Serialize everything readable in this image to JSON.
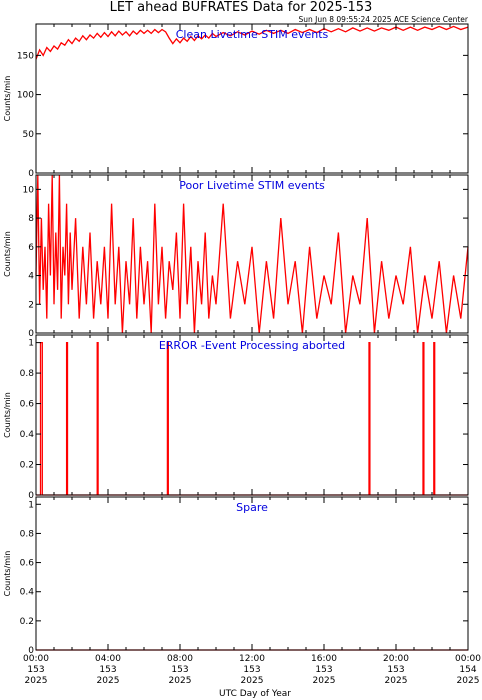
{
  "header": {
    "title": "LET ahead BUFRATES Data for 2025-153",
    "stamp": "Sun Jun  8 09:55:24 2025 ACE Science Center"
  },
  "xaxis": {
    "label": "UTC Day of Year",
    "range_hours": [
      0,
      24
    ],
    "ticks": [
      {
        "hour": 0,
        "time": "00:00",
        "doy": "153",
        "year": "2025"
      },
      {
        "hour": 4,
        "time": "04:00",
        "doy": "153",
        "year": "2025"
      },
      {
        "hour": 8,
        "time": "08:00",
        "doy": "153",
        "year": "2025"
      },
      {
        "hour": 12,
        "time": "12:00",
        "doy": "153",
        "year": "2025"
      },
      {
        "hour": 16,
        "time": "16:00",
        "doy": "153",
        "year": "2025"
      },
      {
        "hour": 20,
        "time": "20:00",
        "doy": "153",
        "year": "2025"
      },
      {
        "hour": 24,
        "time": "00:00",
        "doy": "154",
        "year": "2025"
      }
    ]
  },
  "colors": {
    "trace": "#ff0000",
    "panel_title": "#0000dd",
    "axes": "#000000"
  },
  "chart_data": [
    {
      "type": "line",
      "title": "Clean Livetime STIM events",
      "ylabel": "Counts/min",
      "ylim": [
        0,
        190
      ],
      "yticks": [
        0,
        50,
        100,
        150
      ],
      "points": [
        [
          0.0,
          145
        ],
        [
          0.2,
          157
        ],
        [
          0.4,
          150
        ],
        [
          0.6,
          160
        ],
        [
          0.8,
          155
        ],
        [
          1.0,
          162
        ],
        [
          1.2,
          158
        ],
        [
          1.4,
          166
        ],
        [
          1.6,
          163
        ],
        [
          1.8,
          170
        ],
        [
          2.0,
          165
        ],
        [
          2.2,
          172
        ],
        [
          2.4,
          168
        ],
        [
          2.6,
          175
        ],
        [
          2.8,
          170
        ],
        [
          3.0,
          176
        ],
        [
          3.2,
          172
        ],
        [
          3.4,
          178
        ],
        [
          3.6,
          173
        ],
        [
          3.8,
          179
        ],
        [
          4.0,
          174
        ],
        [
          4.2,
          180
        ],
        [
          4.4,
          175
        ],
        [
          4.6,
          181
        ],
        [
          4.8,
          176
        ],
        [
          5.0,
          180
        ],
        [
          5.2,
          175
        ],
        [
          5.4,
          181
        ],
        [
          5.6,
          177
        ],
        [
          5.8,
          182
        ],
        [
          6.0,
          178
        ],
        [
          6.2,
          182
        ],
        [
          6.4,
          178
        ],
        [
          6.6,
          183
        ],
        [
          6.8,
          179
        ],
        [
          7.0,
          183
        ],
        [
          7.2,
          180
        ],
        [
          7.4,
          172
        ],
        [
          7.6,
          165
        ],
        [
          7.8,
          171
        ],
        [
          8.0,
          166
        ],
        [
          8.2,
          172
        ],
        [
          8.4,
          168
        ],
        [
          8.6,
          174
        ],
        [
          8.8,
          169
        ],
        [
          9.0,
          175
        ],
        [
          9.2,
          171
        ],
        [
          9.4,
          176
        ],
        [
          9.6,
          172
        ],
        [
          9.8,
          178
        ],
        [
          10.0,
          174
        ],
        [
          10.4,
          179
        ],
        [
          10.8,
          175
        ],
        [
          11.2,
          180
        ],
        [
          11.6,
          176
        ],
        [
          12.0,
          181
        ],
        [
          12.4,
          177
        ],
        [
          12.8,
          182
        ],
        [
          13.2,
          178
        ],
        [
          13.6,
          182
        ],
        [
          14.0,
          178
        ],
        [
          14.4,
          183
        ],
        [
          14.8,
          179
        ],
        [
          15.2,
          183
        ],
        [
          15.6,
          179
        ],
        [
          16.0,
          184
        ],
        [
          16.4,
          180
        ],
        [
          16.8,
          184
        ],
        [
          17.2,
          180
        ],
        [
          17.6,
          185
        ],
        [
          18.0,
          181
        ],
        [
          18.4,
          185
        ],
        [
          18.8,
          181
        ],
        [
          19.2,
          185
        ],
        [
          19.6,
          182
        ],
        [
          20.0,
          186
        ],
        [
          20.4,
          182
        ],
        [
          20.8,
          186
        ],
        [
          21.2,
          182
        ],
        [
          21.6,
          186
        ],
        [
          22.0,
          183
        ],
        [
          22.4,
          187
        ],
        [
          22.8,
          183
        ],
        [
          23.2,
          187
        ],
        [
          23.6,
          183
        ],
        [
          24.0,
          186
        ]
      ]
    },
    {
      "type": "line",
      "title": "Poor Livetime STIM events",
      "ylabel": "Counts/min",
      "ylim": [
        0,
        11
      ],
      "yticks": [
        0,
        2,
        4,
        6,
        8,
        10
      ],
      "points": [
        [
          0.0,
          4
        ],
        [
          0.1,
          11
        ],
        [
          0.2,
          2
        ],
        [
          0.3,
          8
        ],
        [
          0.4,
          3
        ],
        [
          0.5,
          6
        ],
        [
          0.6,
          1
        ],
        [
          0.7,
          9
        ],
        [
          0.8,
          4
        ],
        [
          0.9,
          11
        ],
        [
          1.0,
          2
        ],
        [
          1.1,
          7
        ],
        [
          1.2,
          3
        ],
        [
          1.3,
          11
        ],
        [
          1.4,
          1
        ],
        [
          1.5,
          6
        ],
        [
          1.6,
          4
        ],
        [
          1.7,
          9
        ],
        [
          1.8,
          2
        ],
        [
          1.9,
          7
        ],
        [
          2.0,
          3
        ],
        [
          2.2,
          8
        ],
        [
          2.4,
          1
        ],
        [
          2.6,
          6
        ],
        [
          2.8,
          2
        ],
        [
          3.0,
          7
        ],
        [
          3.2,
          1
        ],
        [
          3.4,
          5
        ],
        [
          3.6,
          2
        ],
        [
          3.8,
          6
        ],
        [
          4.0,
          1
        ],
        [
          4.2,
          9
        ],
        [
          4.4,
          2
        ],
        [
          4.6,
          6
        ],
        [
          4.8,
          0
        ],
        [
          5.0,
          5
        ],
        [
          5.2,
          2
        ],
        [
          5.4,
          8
        ],
        [
          5.6,
          1
        ],
        [
          5.8,
          6
        ],
        [
          6.0,
          2
        ],
        [
          6.2,
          5
        ],
        [
          6.4,
          0
        ],
        [
          6.6,
          9
        ],
        [
          6.8,
          2
        ],
        [
          7.0,
          6
        ],
        [
          7.2,
          1
        ],
        [
          7.4,
          5
        ],
        [
          7.6,
          3
        ],
        [
          7.8,
          7
        ],
        [
          8.0,
          1
        ],
        [
          8.2,
          9
        ],
        [
          8.4,
          2
        ],
        [
          8.6,
          6
        ],
        [
          8.8,
          0
        ],
        [
          9.0,
          5
        ],
        [
          9.2,
          2
        ],
        [
          9.4,
          7
        ],
        [
          9.6,
          1
        ],
        [
          9.8,
          4
        ],
        [
          10.0,
          2
        ],
        [
          10.4,
          9
        ],
        [
          10.8,
          1
        ],
        [
          11.2,
          5
        ],
        [
          11.6,
          2
        ],
        [
          12.0,
          6
        ],
        [
          12.4,
          0
        ],
        [
          12.8,
          5
        ],
        [
          13.2,
          1
        ],
        [
          13.6,
          8
        ],
        [
          14.0,
          2
        ],
        [
          14.4,
          5
        ],
        [
          14.8,
          0
        ],
        [
          15.2,
          6
        ],
        [
          15.6,
          1
        ],
        [
          16.0,
          4
        ],
        [
          16.4,
          2
        ],
        [
          16.8,
          7
        ],
        [
          17.2,
          0
        ],
        [
          17.6,
          4
        ],
        [
          18.0,
          2
        ],
        [
          18.4,
          8
        ],
        [
          18.8,
          0
        ],
        [
          19.2,
          5
        ],
        [
          19.6,
          1
        ],
        [
          20.0,
          4
        ],
        [
          20.4,
          2
        ],
        [
          20.8,
          6
        ],
        [
          21.2,
          0
        ],
        [
          21.6,
          4
        ],
        [
          22.0,
          1
        ],
        [
          22.4,
          5
        ],
        [
          22.8,
          0
        ],
        [
          23.2,
          4
        ],
        [
          23.6,
          1
        ],
        [
          24.0,
          6
        ]
      ]
    },
    {
      "type": "line",
      "title": "ERROR -Event Processing aborted",
      "ylabel": "Counts/min",
      "ylim": [
        0,
        1.05
      ],
      "yticks": [
        0,
        0.2,
        0.4,
        0.6,
        0.8,
        1.0
      ],
      "points": [
        [
          0.0,
          0
        ],
        [
          0.25,
          0
        ],
        [
          0.25,
          1
        ],
        [
          0.35,
          1
        ],
        [
          0.35,
          0
        ],
        [
          1.7,
          0
        ],
        [
          1.7,
          1
        ],
        [
          1.75,
          1
        ],
        [
          1.75,
          0
        ],
        [
          3.4,
          0
        ],
        [
          3.4,
          1
        ],
        [
          3.45,
          1
        ],
        [
          3.45,
          0
        ],
        [
          7.3,
          0
        ],
        [
          7.3,
          1
        ],
        [
          7.35,
          1
        ],
        [
          7.35,
          0
        ],
        [
          18.5,
          0
        ],
        [
          18.5,
          1
        ],
        [
          18.55,
          1
        ],
        [
          18.55,
          0
        ],
        [
          21.5,
          0
        ],
        [
          21.5,
          1
        ],
        [
          21.55,
          1
        ],
        [
          21.55,
          0
        ],
        [
          22.1,
          0
        ],
        [
          22.1,
          1
        ],
        [
          22.15,
          1
        ],
        [
          22.15,
          0
        ],
        [
          24.0,
          0
        ]
      ]
    },
    {
      "type": "line",
      "title": "Spare",
      "ylabel": "Counts/min",
      "ylim": [
        0,
        1.05
      ],
      "yticks": [
        0,
        0.2,
        0.4,
        0.6,
        0.8,
        1.0
      ],
      "points": [
        [
          0.0,
          0
        ],
        [
          24.0,
          0
        ]
      ]
    }
  ]
}
